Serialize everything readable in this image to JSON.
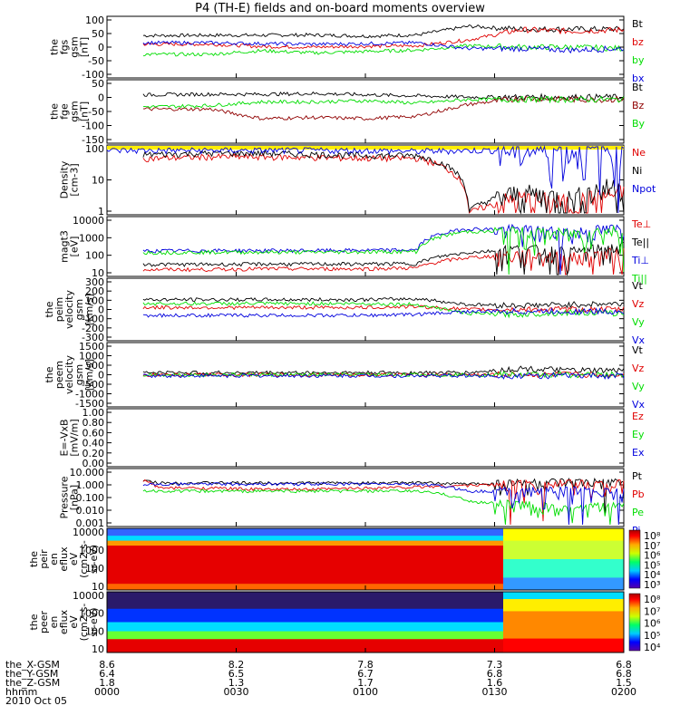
{
  "title": "P4 (TH-E) fields and on-board moments overview",
  "date_label": "2010 Oct 05",
  "footer": {
    "rows": [
      {
        "label": "the_X-GSM",
        "values": [
          "8.6",
          "8.2",
          "7.8",
          "7.3",
          "6.8"
        ]
      },
      {
        "label": "the_Y-GSM",
        "values": [
          "6.4",
          "6.5",
          "6.7",
          "6.8",
          "6.8"
        ]
      },
      {
        "label": "the_Z-GSM",
        "values": [
          "1.8",
          "1.3",
          "1.7",
          "1.6",
          "1.5"
        ]
      },
      {
        "label": "hhmm",
        "values": [
          "0000",
          "0030",
          "0100",
          "0130",
          "0200"
        ]
      }
    ]
  },
  "colors": {
    "black": "#000000",
    "red": "#e00000",
    "green": "#00dd00",
    "blue": "#0000dd",
    "darkred": "#900000",
    "yellow": "#ffee00"
  },
  "chart_data": [
    {
      "type": "line",
      "panel": "fgs",
      "ylabel": [
        "the",
        "fgs",
        "gsm",
        "[nT]"
      ],
      "yticks": [
        "100",
        "50",
        "0",
        "-50",
        "-100"
      ],
      "ylim": [
        -100,
        100
      ],
      "series": [
        {
          "name": "Bt",
          "color": "#000000",
          "values": [
            40,
            40,
            41,
            41,
            42,
            38,
            42,
            72,
            62,
            62,
            62
          ]
        },
        {
          "name": "bz",
          "color": "#e00000",
          "values": [
            10,
            10,
            10,
            2,
            0,
            3,
            5,
            25,
            60,
            55,
            60
          ]
        },
        {
          "name": "by",
          "color": "#00dd00",
          "values": [
            -25,
            -25,
            -25,
            -12,
            -20,
            -15,
            -10,
            5,
            0,
            0,
            -5
          ]
        },
        {
          "name": "bx",
          "color": "#0000dd",
          "values": [
            15,
            15,
            15,
            12,
            10,
            12,
            15,
            -5,
            -5,
            -10,
            -5
          ]
        }
      ]
    },
    {
      "type": "line",
      "panel": "fge",
      "ylabel": [
        "the",
        "fge",
        "gsm",
        "[nT]"
      ],
      "yticks": [
        "50",
        "0",
        "-50",
        "-100",
        "-150"
      ],
      "ylim": [
        -175,
        75
      ],
      "series": [
        {
          "name": "Bt",
          "color": "#000000",
          "values": [
            20,
            20,
            22,
            22,
            25,
            20,
            15,
            10,
            10,
            10,
            10
          ]
        },
        {
          "name": "Bz",
          "color": "#900000",
          "values": [
            -40,
            -40,
            -40,
            -80,
            -75,
            -80,
            -70,
            -20,
            5,
            0,
            0
          ]
        },
        {
          "name": "By",
          "color": "#00dd00",
          "values": [
            -30,
            -30,
            -25,
            -10,
            -10,
            -5,
            -15,
            0,
            0,
            0,
            0
          ]
        }
      ]
    },
    {
      "type": "line",
      "panel": "density",
      "ylabel": [
        "Density",
        "[cm-3]"
      ],
      "yticks": [
        "100",
        "10",
        "1"
      ],
      "ylim": [
        1,
        200
      ],
      "log": true,
      "series": [
        {
          "name": "Ne",
          "color": "#e00000",
          "values": [
            80,
            80,
            90,
            90,
            85,
            80,
            80,
            1,
            3,
            2,
            5
          ]
        },
        {
          "name": "Ni",
          "color": "#000000",
          "values": [
            100,
            110,
            120,
            120,
            110,
            100,
            100,
            1.2,
            5,
            3,
            10
          ]
        },
        {
          "name": "Npot",
          "color": "#0000dd",
          "values": [
            150,
            150,
            150,
            150,
            150,
            150,
            140,
            150,
            150,
            150,
            150
          ]
        }
      ]
    },
    {
      "type": "line",
      "panel": "magt3",
      "ylabel": [
        "magt3",
        "[eV]"
      ],
      "yticks": [
        "10000",
        "1000",
        "100",
        "10"
      ],
      "ylim": [
        10,
        20000
      ],
      "log": true,
      "series": [
        {
          "name": "Te⊥",
          "color": "#e00000",
          "values": [
            20,
            20,
            20,
            22,
            22,
            22,
            25,
            100,
            150,
            100,
            200
          ]
        },
        {
          "name": "Te||",
          "color": "#000000",
          "values": [
            40,
            40,
            40,
            42,
            42,
            42,
            45,
            200,
            300,
            200,
            400
          ]
        },
        {
          "name": "Ti⊥",
          "color": "#0000dd",
          "values": [
            250,
            250,
            260,
            260,
            260,
            270,
            280,
            5000,
            4000,
            3000,
            5000
          ]
        },
        {
          "name": "Ti||",
          "color": "#00dd00",
          "values": [
            200,
            200,
            210,
            210,
            210,
            220,
            230,
            3500,
            3000,
            2500,
            4000
          ]
        }
      ]
    },
    {
      "type": "line",
      "panel": "peim",
      "ylabel": [
        "the",
        "peim",
        "velocity",
        "gsm",
        "[km/s]"
      ],
      "yticks": [
        "300",
        "200",
        "100",
        "0",
        "-100",
        "-200",
        "-300"
      ],
      "ylim": [
        -300,
        300
      ],
      "series": [
        {
          "name": "Vt",
          "color": "#000000",
          "values": [
            100,
            100,
            100,
            100,
            100,
            100,
            110,
            50,
            40,
            50,
            60
          ]
        },
        {
          "name": "Vz",
          "color": "#e00000",
          "values": [
            20,
            20,
            20,
            20,
            20,
            20,
            30,
            0,
            0,
            0,
            0
          ]
        },
        {
          "name": "Vy",
          "color": "#00dd00",
          "values": [
            60,
            60,
            60,
            60,
            60,
            60,
            50,
            -40,
            -50,
            -30,
            -40
          ]
        },
        {
          "name": "Vx",
          "color": "#0000dd",
          "values": [
            -60,
            -60,
            -60,
            -60,
            -60,
            -60,
            -50,
            -20,
            -20,
            -20,
            -20
          ]
        }
      ]
    },
    {
      "type": "line",
      "panel": "peem",
      "ylabel": [
        "the",
        "peem",
        "velocity",
        "gsm",
        "[km/s]"
      ],
      "yticks": [
        "1500",
        "1000",
        "500",
        "0",
        "-500",
        "-1000",
        "-1500"
      ],
      "ylim": [
        -1500,
        1500
      ],
      "series": [
        {
          "name": "Vt",
          "color": "#000000",
          "values": [
            100,
            100,
            100,
            100,
            100,
            100,
            100,
            100,
            300,
            200,
            200
          ]
        },
        {
          "name": "Vz",
          "color": "#e00000",
          "values": [
            0,
            0,
            0,
            0,
            0,
            0,
            0,
            0,
            0,
            0,
            0
          ]
        },
        {
          "name": "Vy",
          "color": "#00dd00",
          "values": [
            0,
            0,
            0,
            0,
            0,
            0,
            0,
            0,
            0,
            0,
            0
          ]
        },
        {
          "name": "Vx",
          "color": "#0000dd",
          "values": [
            -50,
            -50,
            -50,
            -50,
            -50,
            -50,
            -50,
            -50,
            -50,
            -50,
            -50
          ]
        }
      ]
    },
    {
      "type": "line",
      "panel": "exb",
      "ylabel": [
        "E=-VxB",
        "[mV/m]"
      ],
      "yticks": [
        "1.00",
        "0.80",
        "0.60",
        "0.40",
        "0.20",
        "0.00"
      ],
      "ylim": [
        0,
        1
      ],
      "series": [
        {
          "name": "Ez",
          "color": "#e00000",
          "values": []
        },
        {
          "name": "Ey",
          "color": "#00dd00",
          "values": []
        },
        {
          "name": "Ex",
          "color": "#0000dd",
          "values": []
        }
      ]
    },
    {
      "type": "line",
      "panel": "pressure",
      "ylabel": [
        "Pressure",
        "[nPa]"
      ],
      "yticks": [
        "10.000",
        "1.000",
        "0.100",
        "0.010",
        "0.001"
      ],
      "ylim": [
        0.001,
        10
      ],
      "log": true,
      "series": [
        {
          "name": "Pt",
          "color": "#000000",
          "values": [
            3,
            1.2,
            1.2,
            1.2,
            1.2,
            1.2,
            1.2,
            1.0,
            1.2,
            1.2,
            1.2
          ]
        },
        {
          "name": "Pb",
          "color": "#e00000",
          "values": [
            5,
            0.5,
            0.5,
            0.4,
            0.4,
            0.5,
            0.6,
            0.8,
            1.0,
            1.0,
            1.0
          ]
        },
        {
          "name": "Pe",
          "color": "#00dd00",
          "values": [
            0.3,
            0.3,
            0.3,
            0.3,
            0.3,
            0.3,
            0.3,
            0.05,
            0.03,
            0.01,
            0.03
          ]
        },
        {
          "name": "Pi",
          "color": "#0000dd",
          "values": [
            1,
            1,
            1,
            1,
            1,
            1,
            1,
            0.3,
            0.3,
            0.3,
            0.3
          ]
        }
      ]
    },
    {
      "type": "heatmap",
      "panel": "peir",
      "ylabel": [
        "the",
        "peir",
        "en",
        "eflux",
        "eV",
        "(cm2-s-",
        "sr-eV)"
      ],
      "yticks": [
        "10000",
        "1000",
        "100",
        "10"
      ],
      "log": true,
      "colorbar_ticks": [
        "10⁸",
        "10⁷",
        "10⁶",
        "10⁵",
        "10⁴",
        "10³"
      ]
    },
    {
      "type": "heatmap",
      "panel": "peer",
      "ylabel": [
        "the",
        "peer",
        "en",
        "eflux",
        "eV",
        "(cm2-s-",
        "sr-eV)"
      ],
      "yticks": [
        "10000",
        "1000",
        "100",
        "10"
      ],
      "log": true,
      "colorbar_ticks": [
        "10⁸",
        "10⁷",
        "10⁶",
        "10⁵",
        "10⁴"
      ]
    }
  ]
}
